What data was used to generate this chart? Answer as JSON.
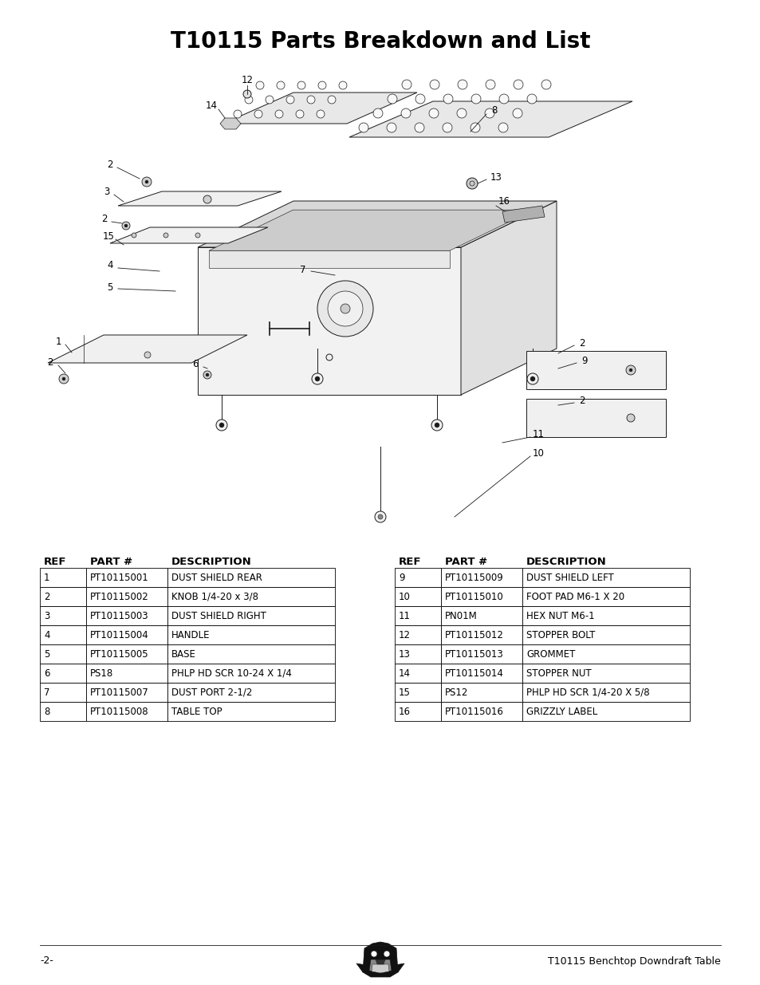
{
  "title": "T10115 Parts Breakdown and List",
  "title_fontsize": 20,
  "title_fontweight": "bold",
  "bg_color": "#ffffff",
  "footer_left": "-2-",
  "footer_right": "T10115 Benchtop Downdraft Table",
  "footer_fontsize": 9,
  "table_header": [
    "REF",
    "PART #",
    "DESCRIPTION"
  ],
  "parts_left": [
    [
      "1",
      "PT10115001",
      "DUST SHIELD REAR"
    ],
    [
      "2",
      "PT10115002",
      "KNOB 1/4-20 x 3/8"
    ],
    [
      "3",
      "PT10115003",
      "DUST SHIELD RIGHT"
    ],
    [
      "4",
      "PT10115004",
      "HANDLE"
    ],
    [
      "5",
      "PT10115005",
      "BASE"
    ],
    [
      "6",
      "PS18",
      "PHLP HD SCR 10-24 X 1/4"
    ],
    [
      "7",
      "PT10115007",
      "DUST PORT 2-1/2"
    ],
    [
      "8",
      "PT10115008",
      "TABLE TOP"
    ]
  ],
  "parts_right": [
    [
      "9",
      "PT10115009",
      "DUST SHIELD LEFT"
    ],
    [
      "10",
      "PT10115010",
      "FOOT PAD M6-1 X 20"
    ],
    [
      "11",
      "PN01M",
      "HEX NUT M6-1"
    ],
    [
      "12",
      "PT10115012",
      "STOPPER BOLT"
    ],
    [
      "13",
      "PT10115013",
      "GROMMET"
    ],
    [
      "14",
      "PT10115014",
      "STOPPER NUT"
    ],
    [
      "15",
      "PS12",
      "PHLP HD SCR 1/4-20 X 5/8"
    ],
    [
      "16",
      "PT10115016",
      "GRIZZLY LABEL"
    ]
  ]
}
